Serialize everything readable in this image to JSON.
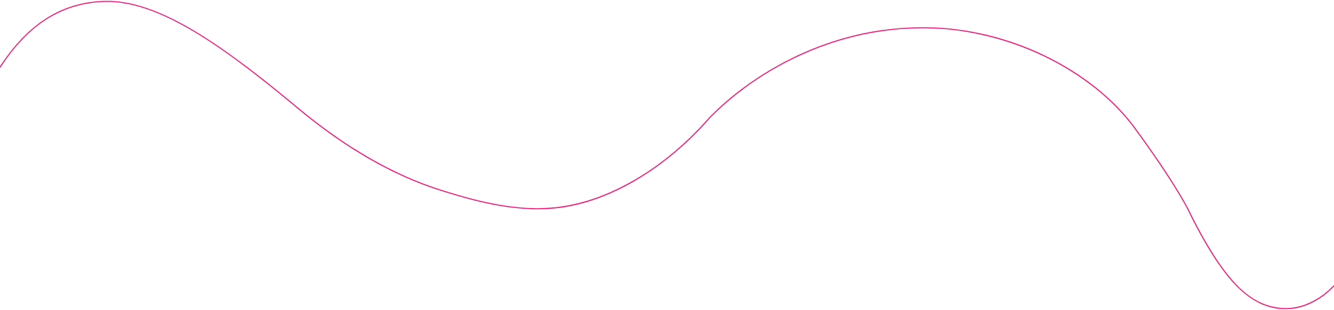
{
  "decoration": {
    "type": "wave-line",
    "stroke_color": "#ec1c7a",
    "background_color": "#ffffff"
  }
}
